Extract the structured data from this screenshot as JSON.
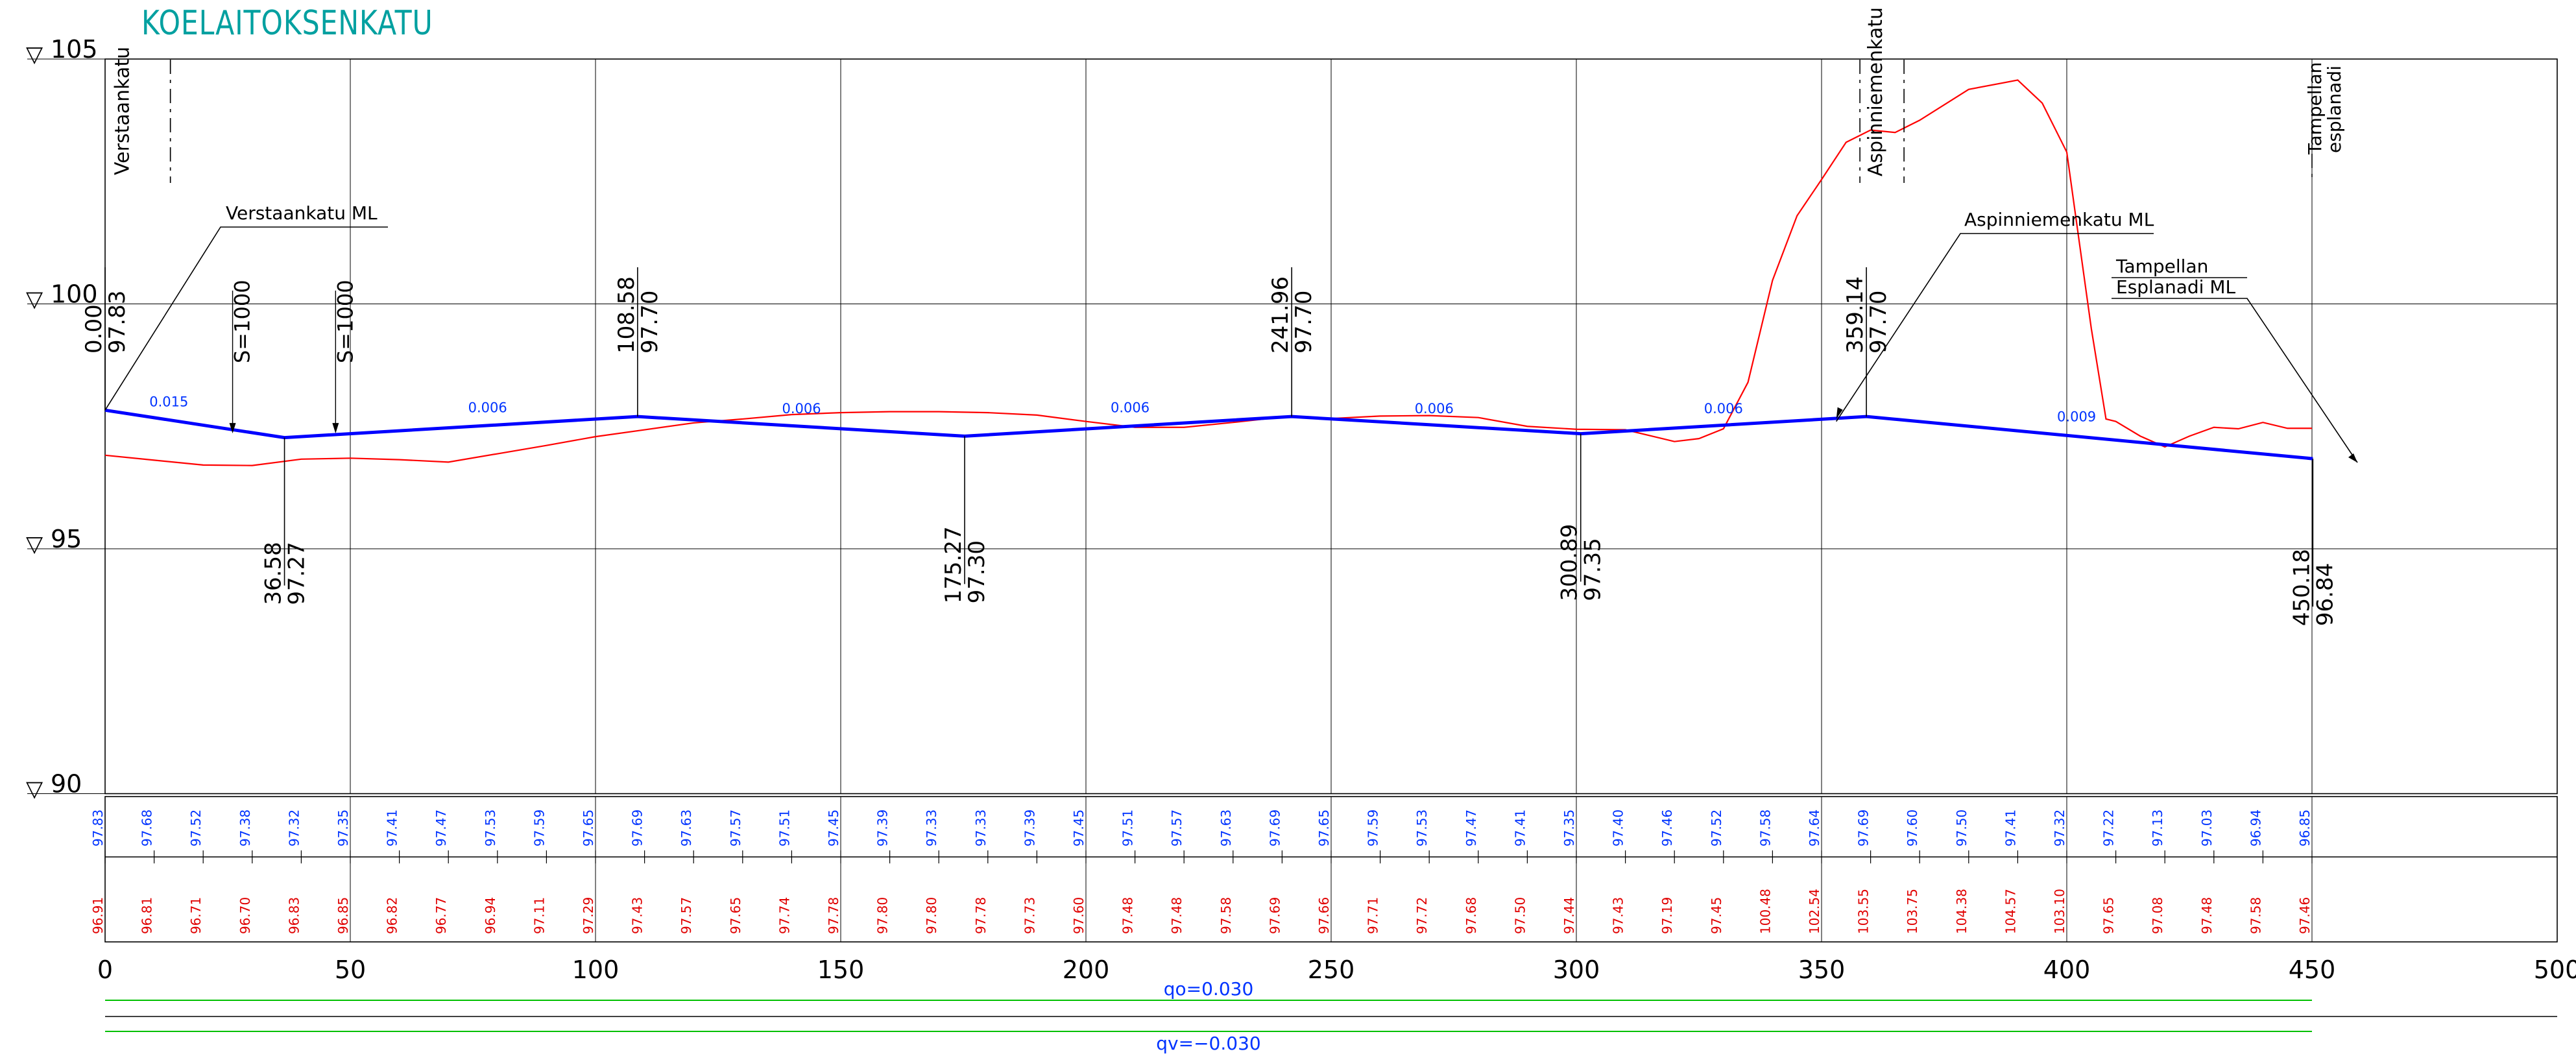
{
  "title": "KOELAITOKSENKATU",
  "colors": {
    "title": "#00a0a0",
    "grade_line": "#0000ff",
    "ground_line": "#ff0000",
    "grid": "#000000",
    "slope_text": "#0033ff",
    "road_values": "#0033ff",
    "ground_values": "#e00000",
    "green_lines": "#00c000"
  },
  "elevation_axis": {
    "labels": [
      {
        "value": 105,
        "text": "105"
      },
      {
        "value": 100,
        "text": "100"
      },
      {
        "value": 95,
        "text": "95"
      },
      {
        "value": 90,
        "text": "90"
      }
    ],
    "symbol": "▽"
  },
  "station_axis": {
    "ticks": [
      0,
      50,
      100,
      150,
      200,
      250,
      300,
      350,
      400,
      450,
      500
    ],
    "labels": [
      "0",
      "50",
      "100",
      "150",
      "200",
      "250",
      "300",
      "350",
      "400",
      "450",
      "500"
    ]
  },
  "chart_data": {
    "type": "line",
    "xlim": [
      0,
      500
    ],
    "ylim": [
      90,
      105
    ],
    "series": [
      {
        "key": "grade",
        "x": [
          0.0,
          36.58,
          108.58,
          175.27,
          241.96,
          300.89,
          359.14,
          450.18
        ],
        "y": [
          97.83,
          97.27,
          97.7,
          97.3,
          97.7,
          97.35,
          97.7,
          96.84
        ]
      },
      {
        "key": "ground",
        "x": [
          0,
          10,
          20,
          30,
          40,
          50,
          60,
          70,
          80,
          90,
          100,
          110,
          120,
          130,
          140,
          150,
          160,
          170,
          180,
          190,
          200,
          210,
          220,
          230,
          240,
          250,
          260,
          270,
          280,
          290,
          300,
          310,
          320,
          325,
          330,
          335,
          340,
          345,
          350,
          355,
          360,
          365,
          370,
          380,
          390,
          395,
          400,
          405,
          408,
          410,
          415,
          420,
          425,
          430,
          435,
          440,
          445,
          450
        ],
        "y": [
          96.91,
          96.81,
          96.71,
          96.7,
          96.83,
          96.85,
          96.82,
          96.77,
          96.94,
          97.11,
          97.29,
          97.43,
          97.57,
          97.65,
          97.74,
          97.78,
          97.8,
          97.8,
          97.78,
          97.73,
          97.6,
          97.48,
          97.48,
          97.58,
          97.69,
          97.66,
          97.71,
          97.72,
          97.68,
          97.5,
          97.44,
          97.43,
          97.19,
          97.25,
          97.45,
          98.4,
          100.48,
          101.8,
          102.54,
          103.3,
          103.55,
          103.5,
          103.75,
          104.38,
          104.57,
          104.1,
          103.1,
          99.5,
          97.65,
          97.6,
          97.3,
          97.08,
          97.3,
          97.48,
          97.45,
          97.58,
          97.46,
          97.46
        ]
      }
    ],
    "pvi_labels": [
      {
        "station": "0.00",
        "elevation": "97.83",
        "x": 0.0,
        "side": "above"
      },
      {
        "station": "36.58",
        "elevation": "97.27",
        "x": 36.58,
        "side": "below"
      },
      {
        "station": "108.58",
        "elevation": "97.70",
        "x": 108.58,
        "side": "above"
      },
      {
        "station": "175.27",
        "elevation": "97.30",
        "x": 175.27,
        "side": "below"
      },
      {
        "station": "241.96",
        "elevation": "97.70",
        "x": 241.96,
        "side": "above"
      },
      {
        "station": "300.89",
        "elevation": "97.35",
        "x": 300.89,
        "side": "below"
      },
      {
        "station": "359.14",
        "elevation": "97.70",
        "x": 359.14,
        "side": "above"
      },
      {
        "station": "450.18",
        "elevation": "96.84",
        "x": 450.18,
        "side": "below"
      }
    ],
    "slopes": [
      {
        "text": "0.015",
        "x": 13,
        "y": 97.8
      },
      {
        "text": "0.006",
        "x": 78,
        "y": 97.68
      },
      {
        "text": "0.006",
        "x": 142,
        "y": 97.66
      },
      {
        "text": "0.006",
        "x": 209,
        "y": 97.68
      },
      {
        "text": "0.006",
        "x": 271,
        "y": 97.66
      },
      {
        "text": "0.006",
        "x": 330,
        "y": 97.66
      },
      {
        "text": "0.009",
        "x": 402,
        "y": 97.5
      }
    ],
    "vertical_curves": [
      {
        "text": "S=1000",
        "x": 26
      },
      {
        "text": "S=1000",
        "x": 47
      }
    ],
    "crossings": [
      {
        "lines": [
          "Verstaankatu"
        ],
        "x": 7.5
      },
      {
        "lines": [
          "Aspinniemenkatu"
        ],
        "x": 352
      },
      {
        "lines": [
          "Tampellan",
          "esplanadi"
        ],
        "x": 450
      }
    ],
    "ml_labels": [
      {
        "lines": [
          "Verstaankatu  ML"
        ]
      },
      {
        "lines": [
          "Aspinniemenkatu  ML"
        ]
      },
      {
        "lines": [
          "Tampellan",
          "Esplanadi  ML"
        ]
      }
    ],
    "road_values": [
      "97.83",
      "97.68",
      "97.52",
      "97.38",
      "97.32",
      "97.35",
      "97.41",
      "97.47",
      "97.53",
      "97.59",
      "97.65",
      "97.69",
      "97.63",
      "97.57",
      "97.51",
      "97.45",
      "97.39",
      "97.33",
      "97.33",
      "97.39",
      "97.45",
      "97.51",
      "97.57",
      "97.63",
      "97.69",
      "97.65",
      "97.59",
      "97.53",
      "97.47",
      "97.41",
      "97.35",
      "97.40",
      "97.46",
      "97.52",
      "97.58",
      "97.64",
      "97.69",
      "97.60",
      "97.50",
      "97.41",
      "97.32",
      "97.22",
      "97.13",
      "97.03",
      "96.94",
      "96.85"
    ],
    "ground_values": [
      "96.91",
      "96.81",
      "96.71",
      "96.70",
      "96.83",
      "96.85",
      "96.82",
      "96.77",
      "96.94",
      "97.11",
      "97.29",
      "97.43",
      "97.57",
      "97.65",
      "97.74",
      "97.78",
      "97.80",
      "97.80",
      "97.78",
      "97.73",
      "97.60",
      "97.48",
      "97.48",
      "97.58",
      "97.69",
      "97.66",
      "97.71",
      "97.72",
      "97.68",
      "97.50",
      "97.44",
      "97.43",
      "97.19",
      "97.45",
      "100.48",
      "102.54",
      "103.55",
      "103.75",
      "104.38",
      "104.57",
      "103.10",
      "97.65",
      "97.08",
      "97.48",
      "97.58",
      "97.46"
    ]
  },
  "side_slopes": {
    "qo": "qo=0.030",
    "qv": "qv=−0.030"
  }
}
